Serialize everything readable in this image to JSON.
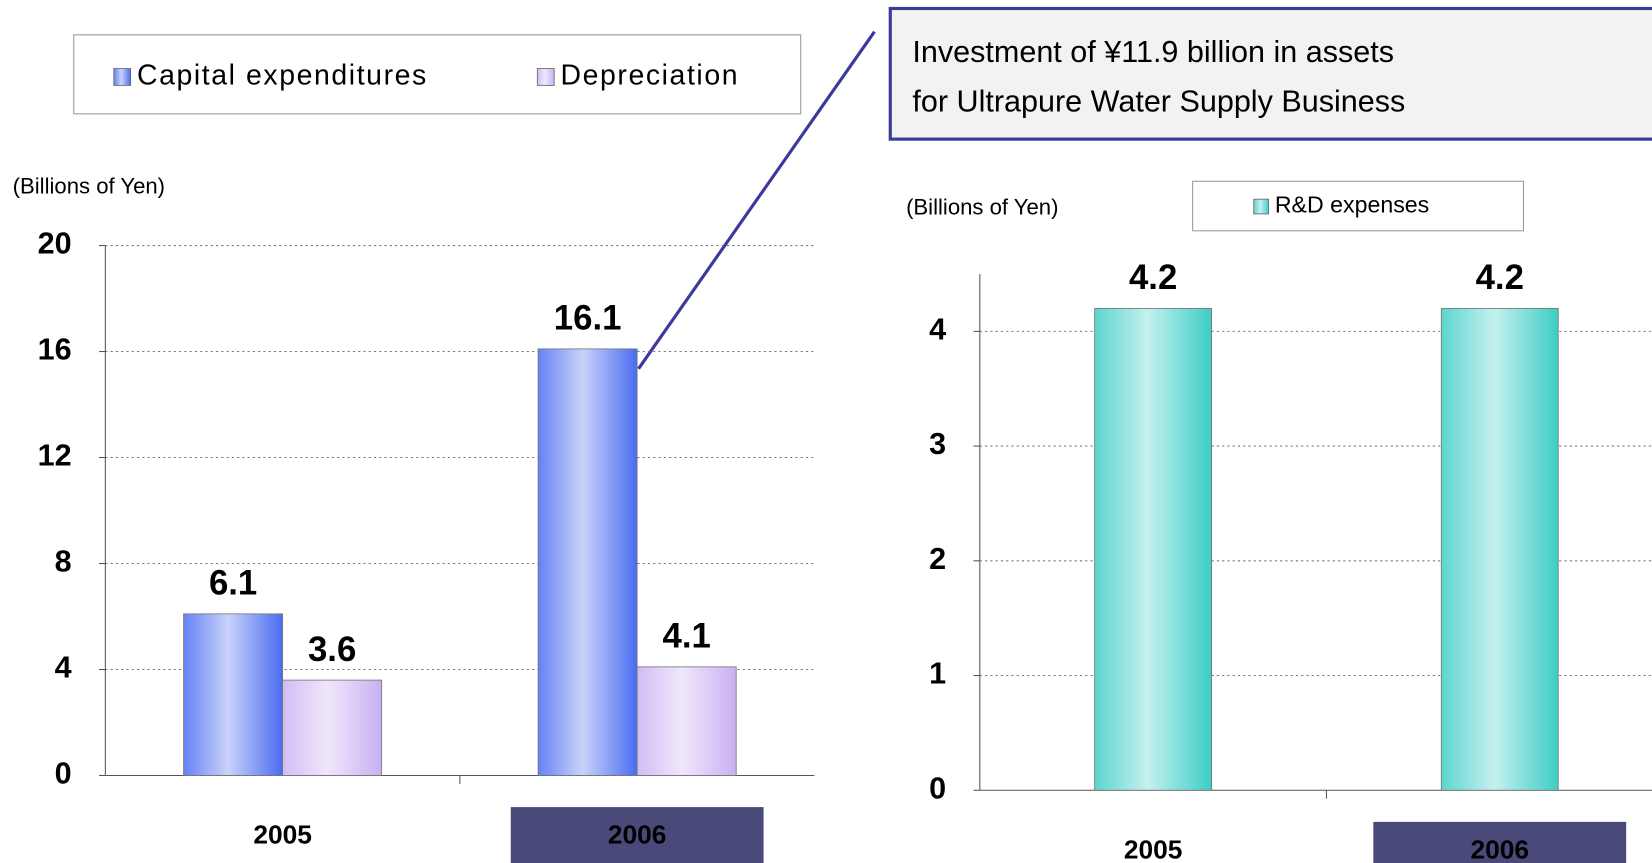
{
  "chart_data": [
    {
      "type": "bar",
      "ylabel": "(Billions of Yen)",
      "annotation": [
        "Investment of ¥11.9 billion in assets",
        "for Ultrapure Water Supply Business"
      ],
      "categories": [
        "2005",
        "2006"
      ],
      "series": [
        {
          "name": "Capital expenditures",
          "color": "#4a6cf0",
          "values": [
            6.1,
            16.1
          ]
        },
        {
          "name": "Depreciation",
          "color": "#c9b0f2",
          "values": [
            3.6,
            4.1
          ]
        }
      ],
      "ylim": [
        0,
        20
      ],
      "yticks": [
        0,
        4,
        8,
        12,
        16,
        20
      ],
      "grid": true
    },
    {
      "type": "bar",
      "ylabel": "(Billions of Yen)",
      "categories": [
        "2005",
        "2006"
      ],
      "series": [
        {
          "name": "R&D expenses",
          "color": "#3ecdc6",
          "values": [
            4.2,
            4.2
          ]
        }
      ],
      "ylim": [
        0,
        4.5
      ],
      "yticks": [
        0,
        1,
        2,
        3,
        4
      ],
      "grid": true
    }
  ]
}
